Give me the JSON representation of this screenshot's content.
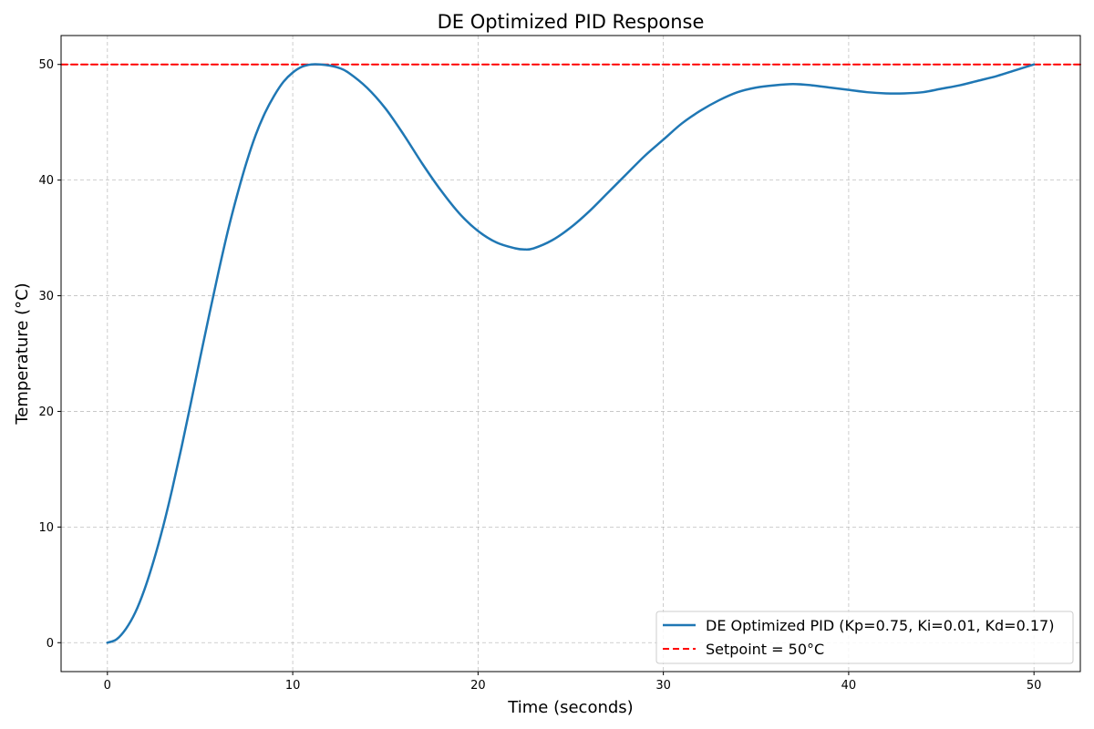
{
  "chart_data": {
    "type": "line",
    "title": "DE Optimized PID Response",
    "xlabel": "Time (seconds)",
    "ylabel": "Temperature (°C)",
    "xlim": [
      -2.5,
      52.5
    ],
    "ylim": [
      -2.5,
      52.5
    ],
    "xticks": [
      0,
      10,
      20,
      30,
      40,
      50
    ],
    "yticks": [
      0,
      10,
      20,
      30,
      40,
      50
    ],
    "grid": true,
    "legend_position": "lower-right",
    "series": [
      {
        "name": "DE Optimized PID (Kp=0.75, Ki=0.01, Kd=0.17)",
        "color": "#1f77b4",
        "style": "solid",
        "x": [
          0,
          0.5,
          1,
          1.5,
          2,
          2.5,
          3,
          3.5,
          4,
          4.5,
          5,
          5.5,
          6,
          6.5,
          7,
          7.5,
          8,
          8.5,
          9,
          9.5,
          10,
          10.5,
          11,
          11.5,
          12,
          12.5,
          13,
          14,
          15,
          16,
          17,
          18,
          19,
          20,
          21,
          22,
          22.5,
          23,
          24,
          25,
          26,
          27,
          28,
          29,
          30,
          31,
          32,
          33,
          34,
          35,
          36,
          37,
          38,
          39,
          40,
          41,
          42,
          43,
          44,
          45,
          46,
          47,
          48,
          49,
          50
        ],
        "y": [
          0,
          0.3,
          1.2,
          2.6,
          4.6,
          7.1,
          10.0,
          13.3,
          16.9,
          20.7,
          24.6,
          28.4,
          32.1,
          35.6,
          38.7,
          41.5,
          43.9,
          45.8,
          47.3,
          48.5,
          49.3,
          49.8,
          50.0,
          50.0,
          49.9,
          49.7,
          49.3,
          48.0,
          46.2,
          43.9,
          41.4,
          39.1,
          37.1,
          35.6,
          34.6,
          34.1,
          34.0,
          34.1,
          34.8,
          35.9,
          37.3,
          38.9,
          40.5,
          42.1,
          43.5,
          44.9,
          46.0,
          46.9,
          47.6,
          48.0,
          48.2,
          48.3,
          48.2,
          48.0,
          47.8,
          47.6,
          47.5,
          47.5,
          47.6,
          47.9,
          48.2,
          48.6,
          49.0,
          49.5,
          50.0
        ]
      },
      {
        "name": "Setpoint = 50°C",
        "color": "#ff0000",
        "style": "dashed",
        "x": [
          -2.5,
          52.5
        ],
        "y": [
          50,
          50
        ]
      }
    ]
  }
}
